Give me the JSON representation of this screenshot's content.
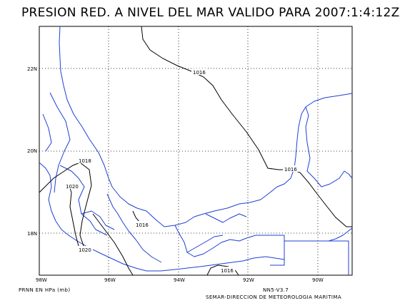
{
  "title": "PRESION RED. A NIVEL DEL MAR VALIDO PARA 2007:1:4:12Z",
  "lat_labels": [
    "22N",
    "20N",
    "18N"
  ],
  "lon_labels": [
    "98W",
    "96W",
    "94W",
    "92W",
    "90W"
  ],
  "contour_labels": [
    "1016",
    "1016",
    "1018",
    "1020",
    "1016",
    "1020",
    "1016"
  ],
  "footer": {
    "units": "PRNN EN HPa (mb)",
    "model": "NN5-V3.7",
    "agency": "SEMAR-DIRECCION DE METEOROLOGIA MARITIMA"
  },
  "colors": {
    "coast": "#1f3fd6",
    "isobar": "#000000",
    "grid": "#000000"
  }
}
